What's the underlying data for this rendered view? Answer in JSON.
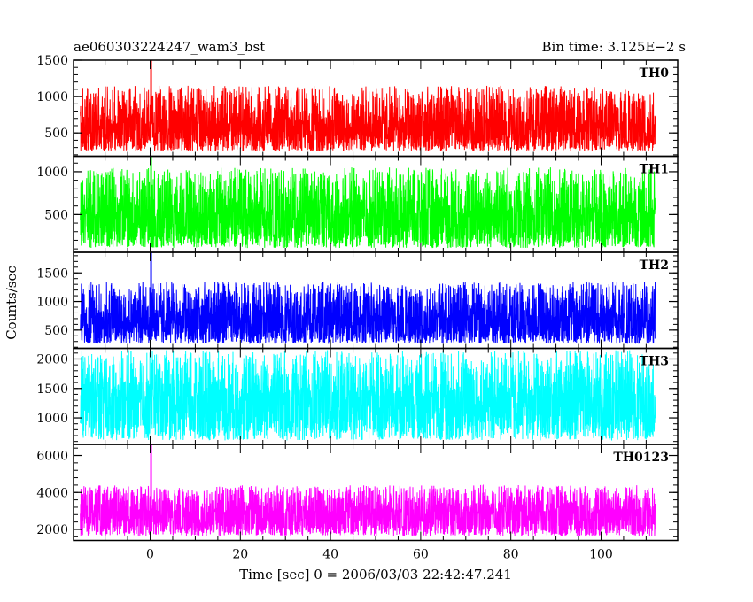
{
  "chart_data": {
    "type": "line",
    "title": "ae060303224247_wam3_bst",
    "subtitle": "Bin time: 3.125E−2 s",
    "xlabel": "Time [sec] 0 = 2006/03/03 22:42:47.241",
    "ylabel": "Counts/sec",
    "xlim": [
      -17,
      117
    ],
    "x_ticks": [
      0,
      20,
      40,
      60,
      80,
      100
    ],
    "x_range_data": [
      -15.5,
      112
    ],
    "grid": false,
    "panels": [
      {
        "name": "TH0",
        "color": "#ff0000",
        "ylim": [
          180,
          1500
        ],
        "y_ticks": [
          500,
          1000,
          1500
        ],
        "mean": 620,
        "noise_low": 250,
        "noise_high": 1150,
        "spike": {
          "x": 0.2,
          "y": 1500
        }
      },
      {
        "name": "TH1",
        "color": "#00ff00",
        "ylim": [
          60,
          1180
        ],
        "y_ticks": [
          500,
          1000
        ],
        "mean": 500,
        "noise_low": 110,
        "noise_high": 1050,
        "spike": {
          "x": 0.2,
          "y": 1180
        }
      },
      {
        "name": "TH2",
        "color": "#0000ff",
        "ylim": [
          180,
          1860
        ],
        "y_ticks": [
          500,
          1000,
          1500
        ],
        "mean": 720,
        "noise_low": 260,
        "noise_high": 1350,
        "spike": {
          "x": 0.2,
          "y": 1860
        }
      },
      {
        "name": "TH3",
        "color": "#00ffff",
        "ylim": [
          550,
          2180
        ],
        "y_ticks": [
          1000,
          1500,
          2000
        ],
        "mean": 1350,
        "noise_low": 620,
        "noise_high": 2150,
        "spike": null
      },
      {
        "name": "TH0123",
        "color": "#ff00ff",
        "ylim": [
          1400,
          6600
        ],
        "y_ticks": [
          2000,
          4000,
          6000
        ],
        "mean": 2950,
        "noise_low": 1650,
        "noise_high": 4400,
        "spike": {
          "x": 0.2,
          "y": 6600
        }
      }
    ]
  }
}
